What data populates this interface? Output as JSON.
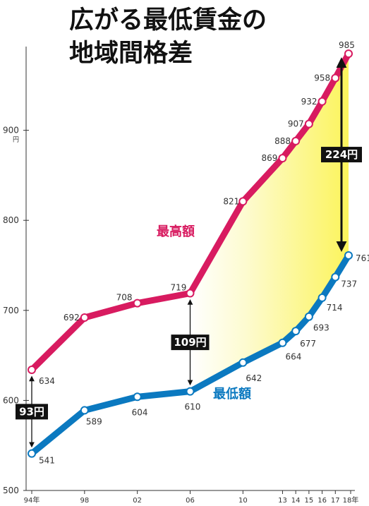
{
  "title": {
    "line1": "広がる最低賃金の",
    "line2": "地域間格差"
  },
  "colors": {
    "max": "#d81b60",
    "min": "#0b79c0",
    "gap_fill_start": "#fff9a0",
    "gap_fill_end": "#fff8c8",
    "axis": "#333333",
    "gap_box": "#111111"
  },
  "chart_data": {
    "type": "line",
    "title": "広がる最低賃金の地域間格差",
    "x": [
      1994,
      1998,
      2002,
      2006,
      2010,
      2013,
      2014,
      2015,
      2016,
      2017,
      2018
    ],
    "x_ticks": [
      1994,
      1998,
      2002,
      2006,
      2010,
      2013,
      2014,
      2015,
      2016,
      2017,
      2018
    ],
    "x_tick_labels": [
      "94年",
      "98",
      "02",
      "06",
      "10",
      "13",
      "14",
      "15",
      "16",
      "17",
      "18年"
    ],
    "y_ticks": [
      500,
      600,
      700,
      800,
      900
    ],
    "ylim": [
      500,
      1000
    ],
    "y_unit": "円",
    "series": [
      {
        "name": "最高額",
        "color": "#d81b60",
        "values": [
          634,
          692,
          708,
          719,
          821,
          869,
          888,
          907,
          932,
          958,
          985
        ]
      },
      {
        "name": "最低額",
        "color": "#0b79c0",
        "values": [
          541,
          589,
          604,
          610,
          642,
          664,
          677,
          693,
          714,
          737,
          761
        ]
      }
    ],
    "annotations": [
      {
        "label": "93円",
        "x": 1994,
        "from": 541,
        "to": 634
      },
      {
        "label": "109円",
        "x": 2006,
        "from": 610,
        "to": 719
      },
      {
        "label": "224円",
        "x": 2018,
        "from": 761,
        "to": 985
      }
    ],
    "gap_shading": "2006-2018"
  }
}
